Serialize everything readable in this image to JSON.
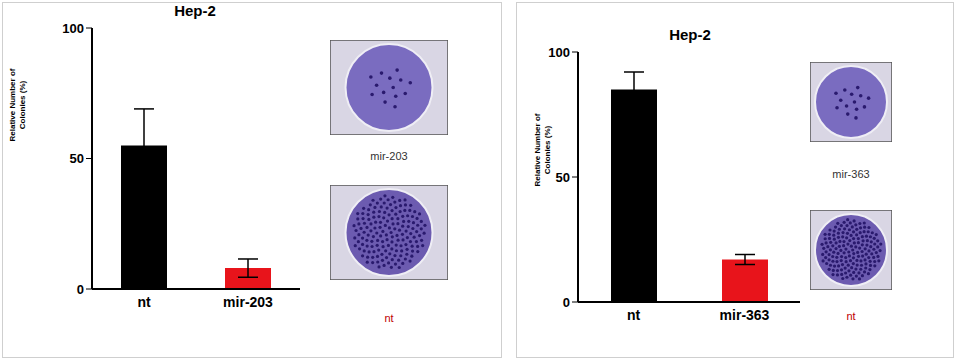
{
  "chart_data": [
    {
      "type": "bar",
      "title": "Hep-2",
      "y_label": "Relative Number of Colonies (%)",
      "categories": [
        "nt",
        "mir-203"
      ],
      "values": [
        55,
        8
      ],
      "errors": [
        14,
        3.5
      ],
      "colors": [
        "#000000",
        "#e8141b"
      ],
      "ylim": [
        0,
        100
      ],
      "yticks": [
        0,
        50,
        100
      ],
      "grid": false,
      "annotations": [
        "mir-203",
        "nt"
      ]
    },
    {
      "type": "bar",
      "title": "Hep-2",
      "y_label": "Relative Number of Colonies (%)",
      "categories": [
        "nt",
        "mir-363"
      ],
      "values": [
        85,
        17
      ],
      "errors": [
        7,
        2
      ],
      "colors": [
        "#000000",
        "#e8141b"
      ],
      "ylim": [
        0,
        100
      ],
      "yticks": [
        0,
        50,
        100
      ],
      "grid": false,
      "annotations": [
        "mir-363",
        "nt"
      ]
    }
  ]
}
